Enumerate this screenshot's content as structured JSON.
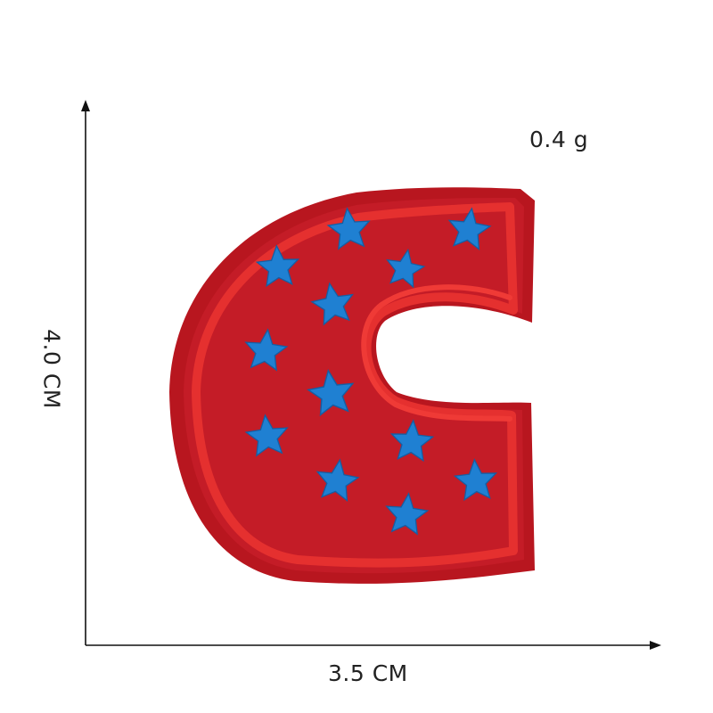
{
  "weight": "0.4 g",
  "width": "3.5 CM",
  "height": "4.0 CM",
  "colors": {
    "patch_felt": "#c81d28",
    "patch_border": "#e22a2e",
    "stars": "#1e7fd0",
    "axes": "#111111"
  },
  "icons": {
    "patch": "letter-c-embroidered-patch",
    "star": "star-icon"
  }
}
